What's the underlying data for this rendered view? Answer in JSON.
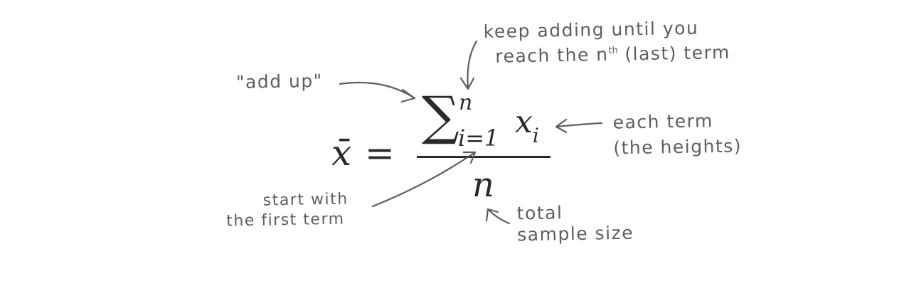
{
  "formula": {
    "mean_symbol": "x̄",
    "equals": "=",
    "sum_symbol": "∑",
    "upper_limit": "n",
    "lower_limit": "i=1",
    "term": "x",
    "term_subscript": "i",
    "denominator": "n"
  },
  "annotations": {
    "add_up": "\"add up\"",
    "keep_adding_line1": "keep adding until you",
    "keep_adding_line2_pre": "reach the n",
    "keep_adding_sup": "th",
    "keep_adding_line2_post": " (last) term",
    "each_term_line1": "each term",
    "each_term_line2": "(the heights)",
    "start_line1": "start with",
    "start_line2": "the first term",
    "total_line1": "total",
    "total_line2": "sample size"
  },
  "colors": {
    "ink": "#2a2a2a",
    "pencil": "#5e5e5e"
  }
}
